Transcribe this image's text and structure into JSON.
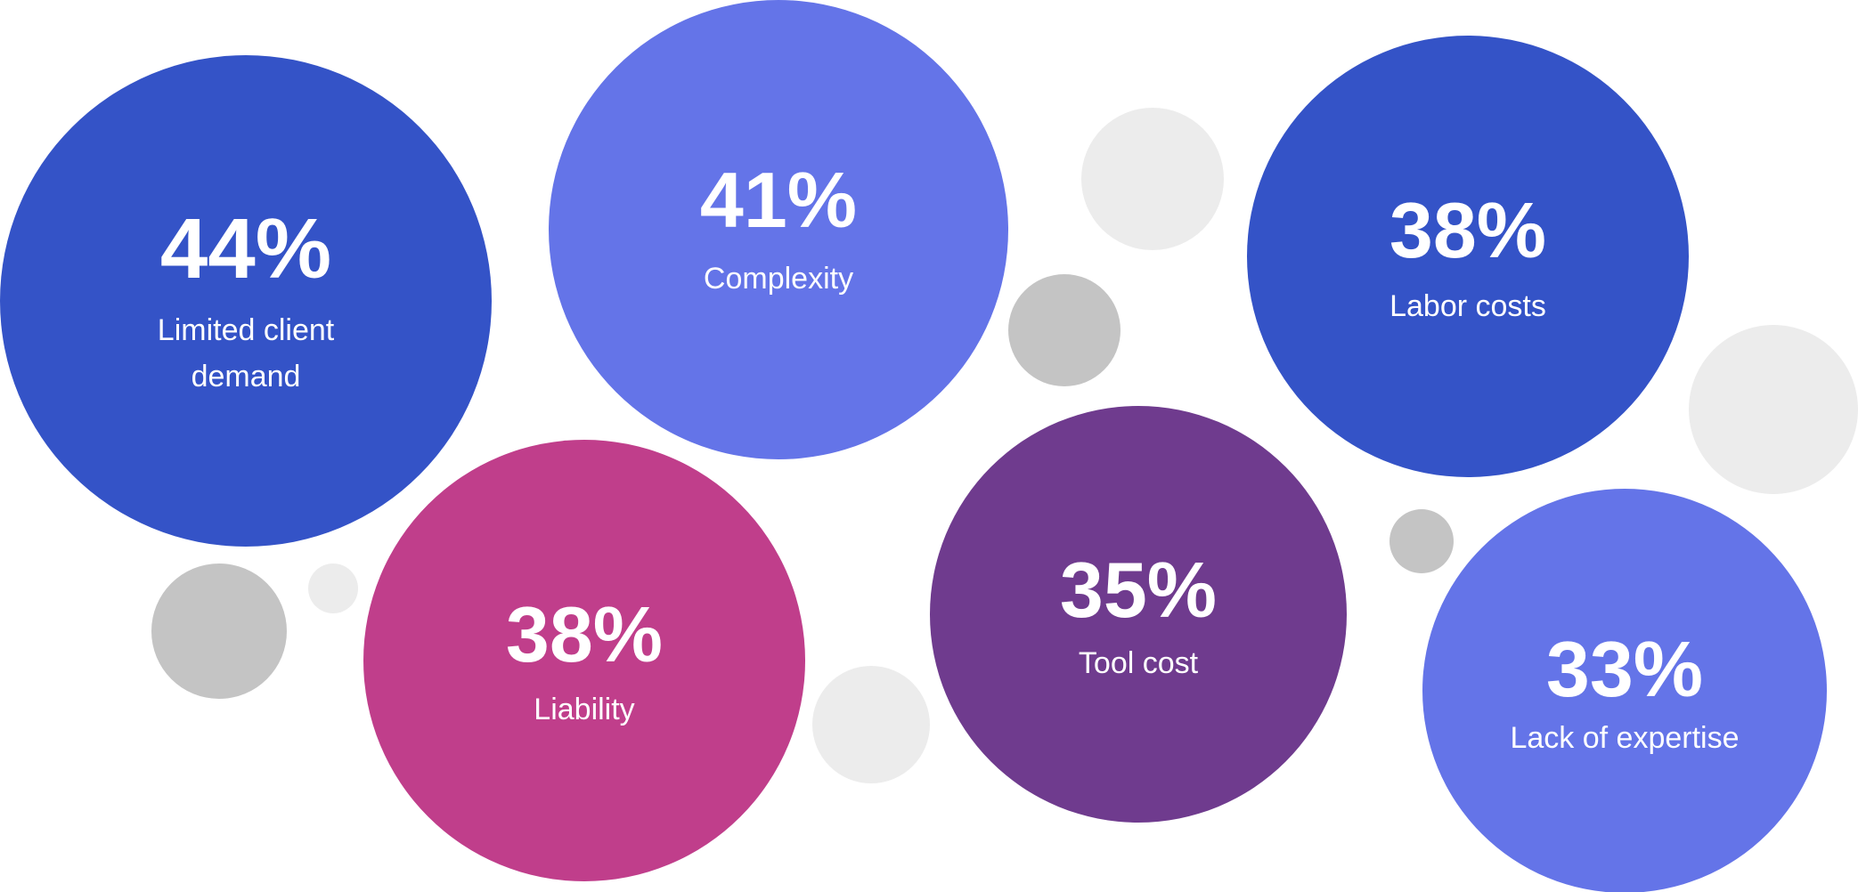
{
  "chart_data": {
    "type": "bubble",
    "title": "",
    "bubbles": [
      {
        "value": "44%",
        "label": "Limited client demand",
        "color": "#3453c7"
      },
      {
        "value": "41%",
        "label": "Complexity",
        "color": "#6474e8"
      },
      {
        "value": "38%",
        "label": "Labor costs",
        "color": "#3453c7"
      },
      {
        "value": "38%",
        "label": "Liability",
        "color": "#c03e8b"
      },
      {
        "value": "35%",
        "label": "Tool cost",
        "color": "#6f3b8e"
      },
      {
        "value": "33%",
        "label": "Lack of expertise",
        "color": "#6474e8"
      }
    ],
    "decorative_colors": [
      "#c4c4c4",
      "#ececec"
    ]
  }
}
